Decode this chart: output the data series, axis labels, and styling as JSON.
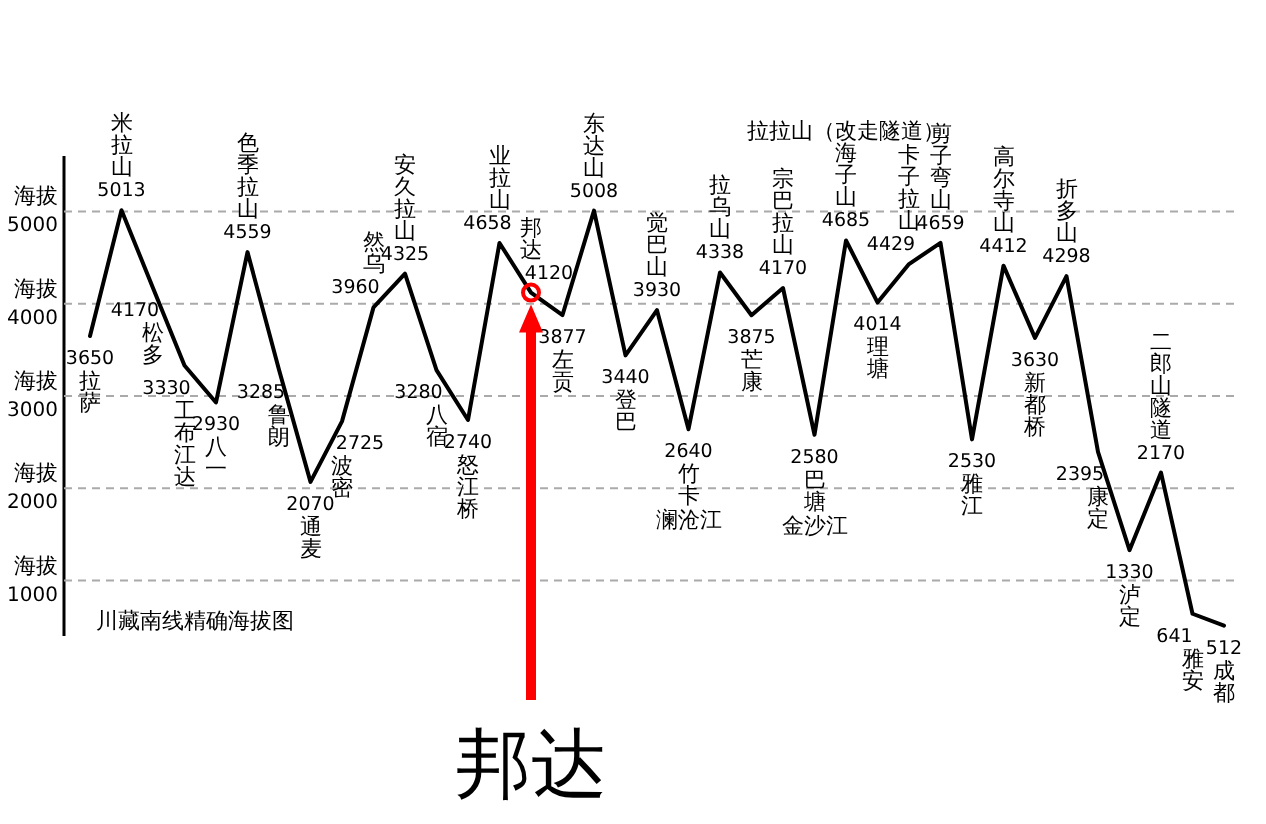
{
  "chart_data": {
    "type": "line",
    "title": "川藏南线精确海拔图",
    "categories": [
      "拉萨",
      "米拉山",
      "松多",
      "工布江达",
      "八一",
      "色季拉山",
      "鲁朗",
      "通麦",
      "波密",
      "然乌",
      "安久拉山",
      "八宿",
      "怒江桥",
      "业拉山",
      "邦达",
      "左贡",
      "东达山",
      "登巴",
      "觉巴山",
      "竹卡",
      "拉乌山",
      "芒康",
      "宗巴拉山",
      "巴塘",
      "海子山",
      "理塘",
      "卡子拉山",
      "剪子弯山",
      "雅江",
      "高尔寺山",
      "新都桥",
      "折多山",
      "康定",
      "泸定",
      "二郎山隧道",
      "雅安",
      "成都"
    ],
    "values": [
      3650,
      5013,
      4170,
      3330,
      2930,
      4559,
      3285,
      2070,
      2725,
      3960,
      4325,
      3280,
      2740,
      4658,
      4120,
      3877,
      5008,
      3440,
      3930,
      2640,
      4338,
      3875,
      4170,
      2580,
      4685,
      4014,
      4429,
      4659,
      2530,
      4412,
      3630,
      4298,
      2395,
      1330,
      2170,
      641,
      512
    ],
    "color": "#000000",
    "data_labels": true,
    "ylim": [
      400,
      5600
    ],
    "yticks": [
      1000,
      2000,
      3000,
      4000,
      5000
    ],
    "ylabel": "海拔",
    "grid": "y",
    "line_style": "solid",
    "marker": "none",
    "annotations": [
      "澜沧江",
      "金沙江",
      "拉拉山（改走隧道）",
      {
        "text": "邦达",
        "x": "邦达",
        "y": 4120
      }
    ]
  }
}
